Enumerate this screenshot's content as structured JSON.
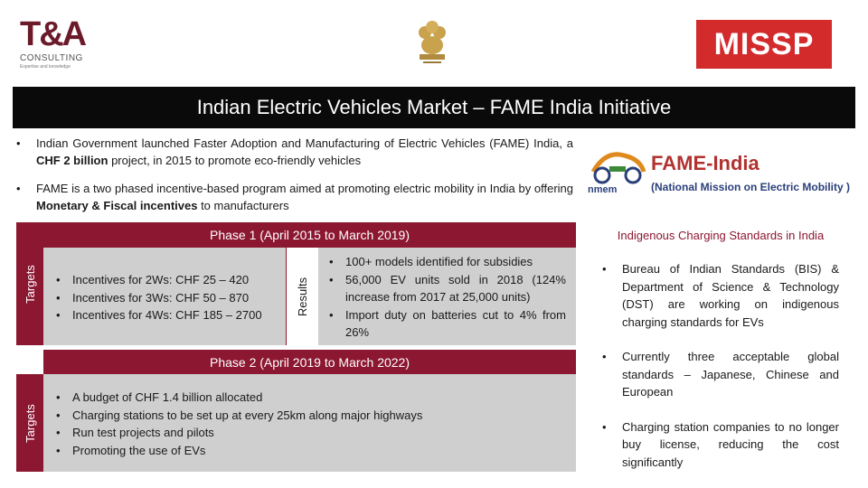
{
  "logos": {
    "ta_mark": "T&A",
    "ta_sub": "CONSULTING",
    "ta_tag": "Expertise and knowledge",
    "missp": "MISSP",
    "fame_title": "FAME-India",
    "fame_subtitle": "(National Mission on Electric Mobility )",
    "nmem": "nmem"
  },
  "title": "Indian Electric Vehicles Market – FAME India Initiative",
  "intro": [
    {
      "pre": "Indian Government launched Faster Adoption and Manufacturing of Electric Vehicles (FAME) India, a ",
      "bold": "CHF 2 billion",
      "post": " project, in 2015 to promote eco-friendly vehicles"
    },
    {
      "pre": "FAME is a two phased incentive-based program aimed at promoting electric mobility in India by offering ",
      "bold": "Monetary & Fiscal incentives",
      "post": " to manufacturers"
    }
  ],
  "phase1": {
    "title": "Phase 1 (April 2015 to March 2019)",
    "targets_label": "Targets",
    "targets": [
      "Incentives for 2Ws: CHF 25 – 420",
      "Incentives for 3Ws: CHF 50 – 870",
      "Incentives for 4Ws: CHF 185 – 2700"
    ],
    "results_label": "Results",
    "results": [
      "100+ models identified for subsidies",
      "56,000 EV units sold in 2018 (124% increase from 2017 at 25,000 units)",
      "Import duty on batteries cut to 4% from 26%"
    ]
  },
  "phase2": {
    "title": "Phase 2 (April 2019 to March 2022)",
    "targets_label": "Targets",
    "targets": [
      "A budget of CHF 1.4 billion allocated",
      "Charging stations to be set up at every 25km along major highways",
      "Run test projects and pilots",
      "Promoting the use of EVs"
    ]
  },
  "charging": {
    "title": "Indigenous Charging Standards in India",
    "items": [
      "Bureau of Indian Standards (BIS) & Department of Science & Technology (DST) are working on indigenous charging standards for EVs",
      "Currently three acceptable global standards – Japanese, Chinese and European",
      "Charging station companies to no longer buy license, reducing the cost significantly"
    ]
  },
  "colors": {
    "accent": "#8c1731",
    "title_bar": "#0a0a0a",
    "panel": "#cfcfcf",
    "missp": "#d32a2c",
    "ta_logo": "#6b1a2a",
    "fame_red": "#b1322f",
    "fame_blue": "#2a3f7a"
  },
  "icons": {
    "emblem": "national-emblem-icon",
    "fame_bike": "electric-bike-icon"
  }
}
